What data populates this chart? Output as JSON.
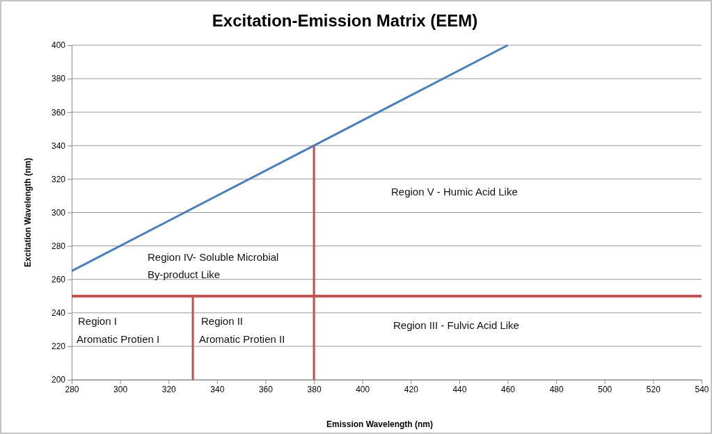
{
  "chart_data": {
    "type": "line",
    "title": "Excitation-Emission Matrix (EEM)",
    "xlabel": "Emission Wavelength (nm)",
    "ylabel": "Excitation Wavelength (nm)",
    "xlim": [
      280,
      540
    ],
    "xticks": [
      280,
      300,
      320,
      340,
      360,
      380,
      400,
      420,
      440,
      460,
      480,
      500,
      520,
      540
    ],
    "ylim": [
      200,
      400
    ],
    "yticks": [
      200,
      220,
      240,
      260,
      280,
      300,
      320,
      340,
      360,
      380,
      400
    ],
    "grid": "y",
    "marker": "none",
    "line_style": "solid",
    "series": [
      {
        "x": [
          280,
          460
        ],
        "values": [
          265,
          400
        ],
        "color": "#4a7ebb"
      },
      {
        "x": [
          330,
          330
        ],
        "values": [
          200,
          250
        ],
        "color": "#c0504d"
      },
      {
        "x": [
          380,
          380
        ],
        "values": [
          200,
          340
        ],
        "color": "#c0504d"
      }
    ],
    "ref_lines": [
      {
        "axis": "y",
        "value": 250,
        "color": "#c0504d"
      }
    ],
    "annotations": [
      "Region V - Humic Acid Like",
      "Region IV- Soluble Microbial",
      "By-product Like",
      "Region III - Fulvic Acid Like",
      "Region I",
      "Aromatic Protien I",
      "Region II",
      "Aromatic Protien II"
    ]
  }
}
